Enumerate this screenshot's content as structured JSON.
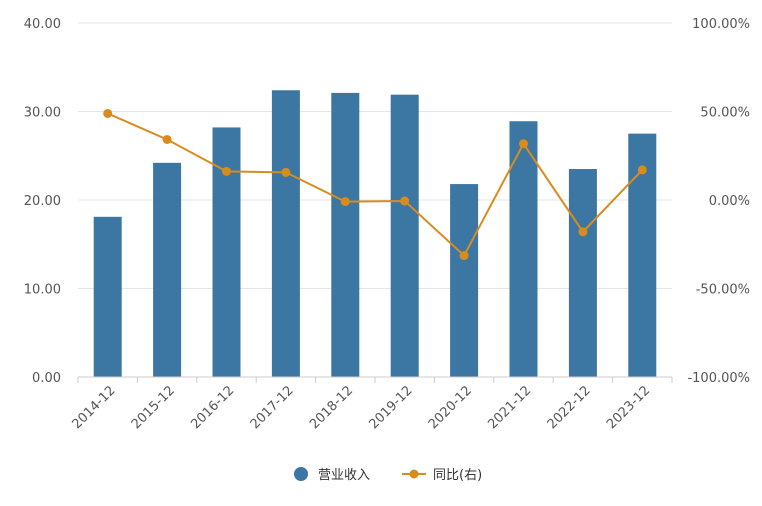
{
  "chart_data": {
    "type": "bar+line",
    "categories": [
      "2014-12",
      "2015-12",
      "2016-12",
      "2017-12",
      "2018-12",
      "2019-12",
      "2020-12",
      "2021-12",
      "2022-12",
      "2023-12"
    ],
    "series": [
      {
        "name": "营业收入",
        "type": "bar",
        "axis": "left",
        "color": "#3C76A3",
        "values": [
          18.1,
          24.2,
          28.2,
          32.4,
          32.1,
          31.9,
          21.8,
          28.9,
          23.5,
          27.5
        ]
      },
      {
        "name": "同比(右)",
        "type": "line",
        "axis": "right",
        "color": "#D98C1E",
        "values": [
          48.9,
          34.2,
          16.2,
          15.6,
          -0.9,
          -0.6,
          -31.4,
          31.8,
          -18.0,
          17.0
        ]
      }
    ],
    "y_left": {
      "min": 0,
      "max": 40,
      "ticks": [
        "0.00",
        "10.00",
        "20.00",
        "30.00",
        "40.00"
      ]
    },
    "y_right": {
      "min": -100,
      "max": 100,
      "ticks": [
        "-100.00%",
        "-50.00%",
        "0.00%",
        "50.00%",
        "100.00%"
      ]
    },
    "legend": {
      "position": "bottom",
      "items": [
        "营业收入",
        "同比(右)"
      ]
    },
    "grid": true,
    "colors": {
      "bar": "#3C76A3",
      "line": "#D98C1E",
      "grid": "#E6E6E6",
      "axis": "#CCCCCC",
      "text": "#555555"
    }
  }
}
